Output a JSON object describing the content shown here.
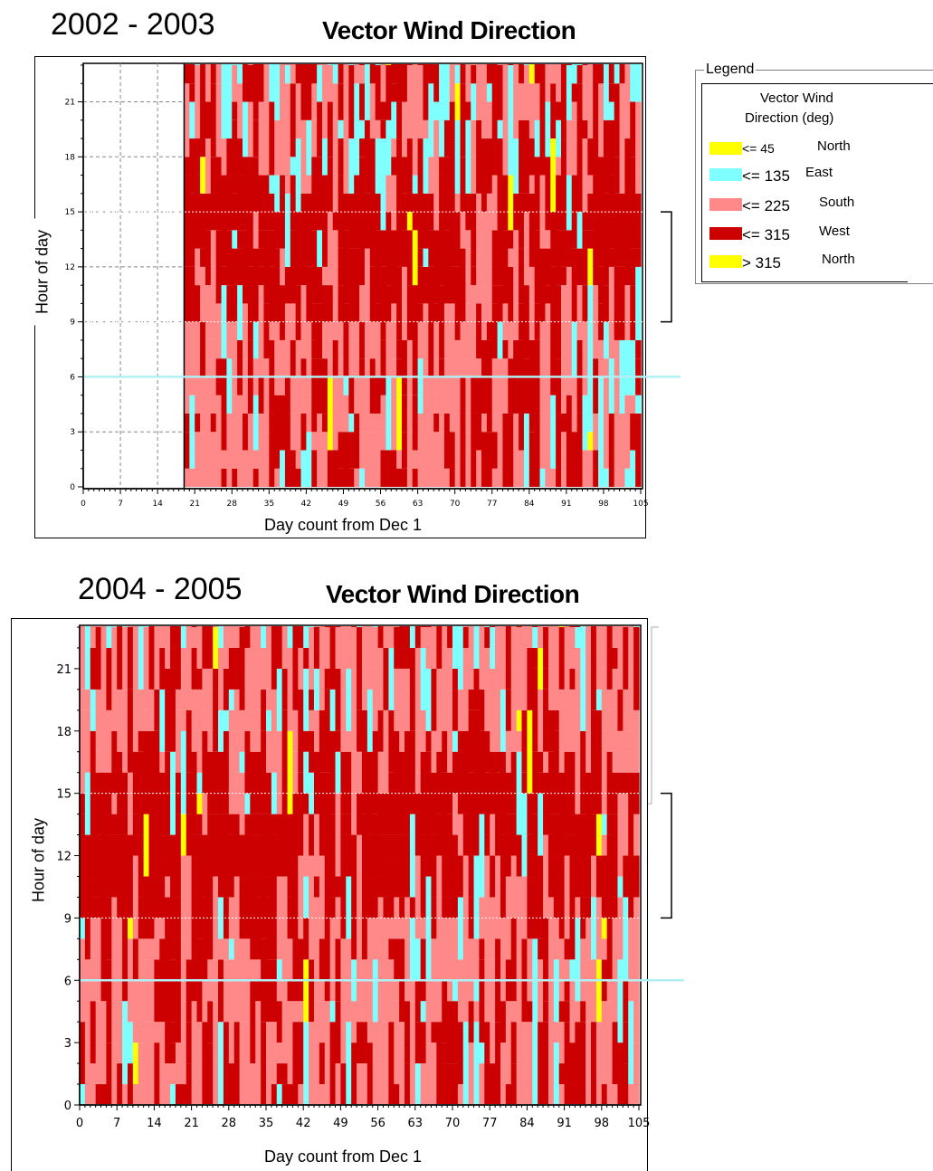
{
  "charts": [
    {
      "year_label": "2002 - 2003",
      "title": "Vector Wind Direction"
    },
    {
      "year_label": "2004 - 2005",
      "title": "Vector Wind Direction"
    }
  ],
  "legend": {
    "title": "Legend",
    "heading_line1": "Vector Wind",
    "heading_line2": "Direction (deg)",
    "items": [
      {
        "label": "<= 45",
        "dir": "North",
        "color": "#ffff00"
      },
      {
        "label": "<= 135",
        "dir": "East",
        "color": "#80ffff"
      },
      {
        "label": "<= 225",
        "dir": "South",
        "color": "#ff8888"
      },
      {
        "label": "<= 315",
        "dir": "West",
        "color": "#cc0000"
      },
      {
        "label": "> 315",
        "dir": "North",
        "color": "#ffff00"
      }
    ]
  },
  "chart_data": [
    {
      "type": "heatmap",
      "title": "Vector Wind Direction",
      "xlabel": "Day count from Dec 1",
      "ylabel": "Hour of day",
      "xlim": [
        0,
        105
      ],
      "ylim": [
        0,
        23
      ],
      "xticks": [
        0,
        7,
        14,
        21,
        28,
        35,
        42,
        49,
        56,
        63,
        70,
        77,
        84,
        91,
        98,
        105
      ],
      "yticks": [
        0,
        3,
        6,
        9,
        12,
        15,
        18,
        21
      ],
      "data_start_day": 19,
      "reference_lines_hour": [
        6,
        9,
        15
      ]
    },
    {
      "type": "heatmap",
      "title": "Vector Wind Direction",
      "xlabel": "Day count from Dec 1",
      "ylabel": "Hour of day",
      "xlim": [
        0,
        105
      ],
      "ylim": [
        0,
        23
      ],
      "xticks": [
        0,
        7,
        14,
        21,
        28,
        35,
        42,
        49,
        56,
        63,
        70,
        77,
        84,
        91,
        98,
        105
      ],
      "yticks": [
        0,
        3,
        6,
        9,
        12,
        15,
        18,
        21
      ],
      "data_start_day": 0,
      "reference_lines_hour": [
        6,
        9,
        15
      ]
    }
  ]
}
